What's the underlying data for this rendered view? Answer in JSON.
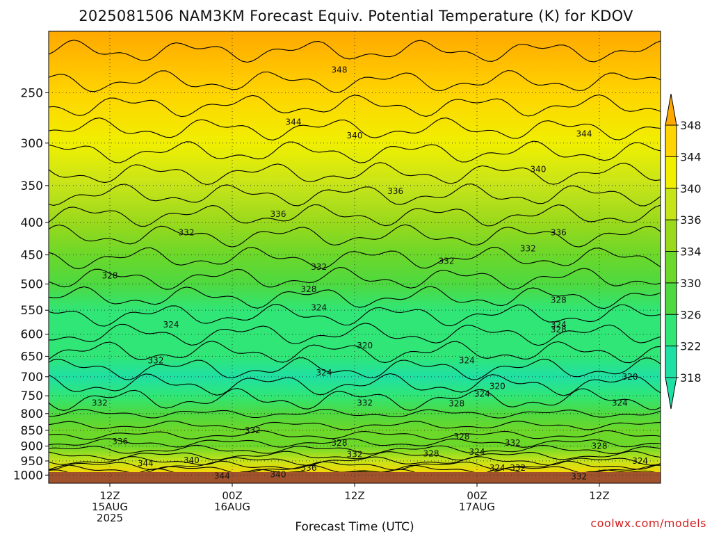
{
  "title": "2025081506 NAM3KM Forecast Equiv. Potential Temperature (K) for KDOV",
  "watermark": "coolwx.com/models",
  "chart_data": {
    "type": "heatmap",
    "title": "2025081506 NAM3KM Forecast Equiv. Potential Temperature (K) for KDOV",
    "xlabel": "Forecast Time (UTC)",
    "ylabel": "",
    "y_scale": "log",
    "y_reversed": true,
    "y_ticks": [
      250,
      300,
      350,
      400,
      450,
      500,
      550,
      600,
      650,
      700,
      750,
      800,
      850,
      900,
      950,
      1000
    ],
    "ylim": [
      200,
      1030
    ],
    "x_ticks": [
      {
        "hour": 12,
        "lines": [
          "12Z",
          "15AUG",
          "2025"
        ]
      },
      {
        "hour": 24,
        "lines": [
          "00Z",
          "16AUG"
        ]
      },
      {
        "hour": 36,
        "lines": [
          "12Z"
        ]
      },
      {
        "hour": 48,
        "lines": [
          "00Z",
          "17AUG"
        ]
      },
      {
        "hour": 60,
        "lines": [
          "12Z"
        ]
      }
    ],
    "xlim": [
      6,
      66
    ],
    "grid": true,
    "colorbar": {
      "levels": [
        318,
        322,
        326,
        330,
        334,
        336,
        340,
        344,
        348
      ],
      "colors": [
        "#1fe0a4",
        "#30e676",
        "#4ed940",
        "#6cd82a",
        "#9ad91c",
        "#c6e41a",
        "#f0ef00",
        "#ffd400",
        "#ffa800"
      ],
      "extend": "both"
    },
    "theta_e_profile": [
      {
        "pressure": 200,
        "theta_e": 352
      },
      {
        "pressure": 250,
        "theta_e": 346
      },
      {
        "pressure": 300,
        "theta_e": 342
      },
      {
        "pressure": 350,
        "theta_e": 338
      },
      {
        "pressure": 400,
        "theta_e": 335
      },
      {
        "pressure": 450,
        "theta_e": 332
      },
      {
        "pressure": 500,
        "theta_e": 329
      },
      {
        "pressure": 550,
        "theta_e": 325
      },
      {
        "pressure": 600,
        "theta_e": 322
      },
      {
        "pressure": 650,
        "theta_e": 322
      },
      {
        "pressure": 700,
        "theta_e": 321
      },
      {
        "pressure": 750,
        "theta_e": 324
      },
      {
        "pressure": 800,
        "theta_e": 329
      },
      {
        "pressure": 850,
        "theta_e": 330
      },
      {
        "pressure": 900,
        "theta_e": 331
      },
      {
        "pressure": 950,
        "theta_e": 336
      },
      {
        "pressure": 1000,
        "theta_e": 344
      }
    ],
    "contour_labels": [
      {
        "hour": 34.5,
        "pressure": 230,
        "text": "348"
      },
      {
        "hour": 30.0,
        "pressure": 278,
        "text": "344"
      },
      {
        "hour": 36.0,
        "pressure": 292,
        "text": "340"
      },
      {
        "hour": 40.0,
        "pressure": 357,
        "text": "336"
      },
      {
        "hour": 28.5,
        "pressure": 388,
        "text": "336"
      },
      {
        "hour": 19.5,
        "pressure": 415,
        "text": "332"
      },
      {
        "hour": 32.5,
        "pressure": 470,
        "text": "332"
      },
      {
        "hour": 45.0,
        "pressure": 460,
        "text": "332"
      },
      {
        "hour": 53.0,
        "pressure": 440,
        "text": "332"
      },
      {
        "hour": 12.0,
        "pressure": 485,
        "text": "328"
      },
      {
        "hour": 31.5,
        "pressure": 510,
        "text": "328"
      },
      {
        "hour": 32.5,
        "pressure": 545,
        "text": "324"
      },
      {
        "hour": 18.0,
        "pressure": 580,
        "text": "324"
      },
      {
        "hour": 37.0,
        "pressure": 625,
        "text": "320"
      },
      {
        "hour": 16.5,
        "pressure": 660,
        "text": "332"
      },
      {
        "hour": 33.0,
        "pressure": 690,
        "text": "324"
      },
      {
        "hour": 47.0,
        "pressure": 660,
        "text": "324"
      },
      {
        "hour": 50.0,
        "pressure": 725,
        "text": "320"
      },
      {
        "hour": 48.5,
        "pressure": 745,
        "text": "324"
      },
      {
        "hour": 63.0,
        "pressure": 700,
        "text": "320"
      },
      {
        "hour": 11.0,
        "pressure": 770,
        "text": "332"
      },
      {
        "hour": 37.0,
        "pressure": 770,
        "text": "332"
      },
      {
        "hour": 46.0,
        "pressure": 772,
        "text": "328"
      },
      {
        "hour": 62.0,
        "pressure": 770,
        "text": "324"
      },
      {
        "hour": 56.0,
        "pressure": 415,
        "text": "336"
      },
      {
        "hour": 54.0,
        "pressure": 330,
        "text": "340"
      },
      {
        "hour": 58.5,
        "pressure": 290,
        "text": "344"
      },
      {
        "hour": 56.0,
        "pressure": 590,
        "text": "328"
      },
      {
        "hour": 56.0,
        "pressure": 530,
        "text": "328"
      },
      {
        "hour": 56.0,
        "pressure": 580,
        "text": "324"
      },
      {
        "hour": 26.0,
        "pressure": 850,
        "text": "332"
      },
      {
        "hour": 13.0,
        "pressure": 885,
        "text": "336"
      },
      {
        "hour": 34.5,
        "pressure": 890,
        "text": "328"
      },
      {
        "hour": 46.5,
        "pressure": 870,
        "text": "328"
      },
      {
        "hour": 43.5,
        "pressure": 925,
        "text": "328"
      },
      {
        "hour": 36.0,
        "pressure": 928,
        "text": "332"
      },
      {
        "hour": 51.5,
        "pressure": 890,
        "text": "332"
      },
      {
        "hour": 60.0,
        "pressure": 900,
        "text": "328"
      },
      {
        "hour": 48.0,
        "pressure": 920,
        "text": "324"
      },
      {
        "hour": 15.5,
        "pressure": 958,
        "text": "344"
      },
      {
        "hour": 20.0,
        "pressure": 948,
        "text": "340"
      },
      {
        "hour": 31.5,
        "pressure": 975,
        "text": "336"
      },
      {
        "hour": 23.0,
        "pressure": 1003,
        "text": "344"
      },
      {
        "hour": 28.5,
        "pressure": 998,
        "text": "340"
      },
      {
        "hour": 50.0,
        "pressure": 975,
        "text": "324"
      },
      {
        "hour": 52.0,
        "pressure": 975,
        "text": "332"
      },
      {
        "hour": 58.0,
        "pressure": 1005,
        "text": "332"
      },
      {
        "hour": 64.0,
        "pressure": 950,
        "text": "324"
      }
    ]
  }
}
